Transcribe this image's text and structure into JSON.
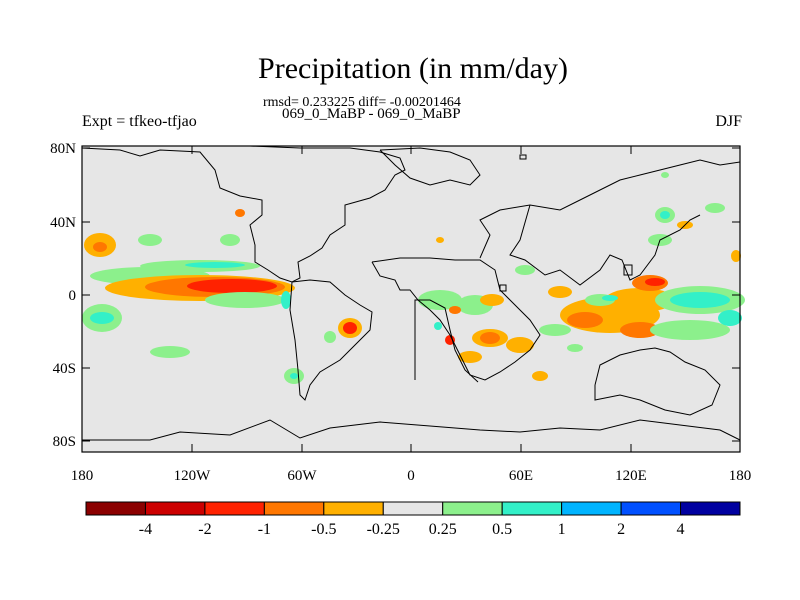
{
  "title": "Precipitation (in mm/day)",
  "stats_line": "rmsd= 0.233225 diff= -0.00201464",
  "case_line": "069_0_MaBP - 069_0_MaBP",
  "left_string": "Expt = tfkeo-tfjao",
  "right_string": "DJF",
  "lat_labels": [
    "80N",
    "40N",
    "0",
    "40S",
    "80S"
  ],
  "lon_labels": [
    "180",
    "120W",
    "60W",
    "0",
    "60E",
    "120E",
    "180"
  ],
  "colors": {
    "land_fill": "#e6e6e6",
    "coastline": "#000000"
  },
  "colorbar": {
    "colors": [
      "#8b0000",
      "#cc0000",
      "#ff2200",
      "#ff7700",
      "#ffb000",
      "#e6e6e6",
      "#8cf08c",
      "#33f0c8",
      "#00b4ff",
      "#0050ff",
      "#0000a0"
    ],
    "labels": [
      "-4",
      "-2",
      "-1",
      "-0.5",
      "-0.25",
      "0.25",
      "0.5",
      "1",
      "2",
      "4"
    ]
  }
}
